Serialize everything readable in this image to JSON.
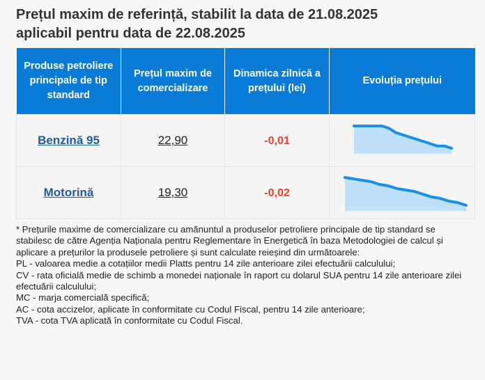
{
  "title_line1": "Prețul maxim de referință, stabilit la data de 21.08.2025",
  "title_line2": "aplicabil pentru data de 22.08.2025",
  "table": {
    "headers": [
      "Produse petroliere principale de tip standard",
      "Prețul maxim de comercializare",
      "Dinamica zilnică a prețului (lei)",
      "Evoluția prețului"
    ],
    "rows": [
      {
        "product": "Benzină 95",
        "price": "22,90",
        "dynamic": "-0,01",
        "trend": [
          23.0,
          23.0,
          23.0,
          23.0,
          23.0,
          22.99,
          22.97,
          22.96,
          22.95,
          22.94,
          22.93,
          22.92,
          22.91,
          22.91,
          22.9
        ]
      },
      {
        "product": "Motorină",
        "price": "19,30",
        "dynamic": "-0,02",
        "trend": [
          19.5,
          19.49,
          19.48,
          19.47,
          19.45,
          19.44,
          19.42,
          19.41,
          19.4,
          19.38,
          19.36,
          19.35,
          19.33,
          19.32,
          19.3
        ]
      }
    ]
  },
  "colors": {
    "header_bg": "#0a7bd6",
    "link": "#1f5b9e",
    "negative": "#e5412d",
    "spark_line": "#1a8fe8",
    "spark_fill": "#bfe0fb"
  },
  "notes": [
    "* Prețurile maxime de comercializare cu amănuntul a produselor petroliere principale de tip standard se stabilesc de către Agenția Naționala pentru Reglementare în Energetică în baza Metodologiei de calcul și aplicare a prețurilor la produsele petroliere și sunt calculate reieșind din următoarele:",
    "PL - valoarea medie a cotațiilor medii Platts pentru 14 zile anterioare zilei efectuării calculului;",
    "CV - rata oficială medie de schimb a monedei naționale în raport cu dolarul SUA pentru 14 zile anterioare zilei efectuării calculului;",
    "MC - marja comercială specifică;",
    "AC - cota accizelor, aplicate în conformitate cu Codul Fiscal, pentru 14 zile anterioare;",
    "TVA - cota TVA aplicată în conformitate cu Codul Fiscal."
  ]
}
